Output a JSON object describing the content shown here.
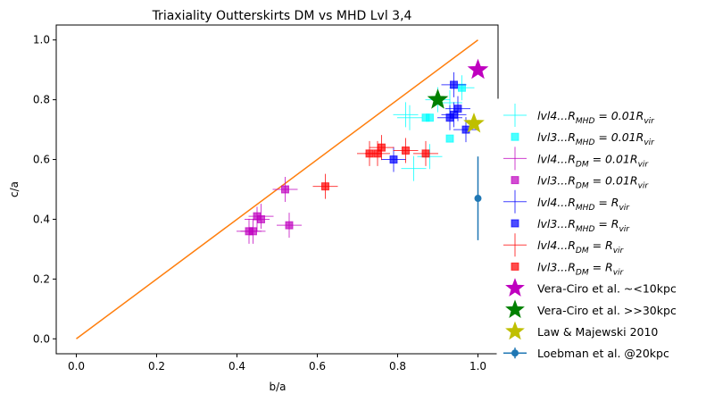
{
  "chart_data": {
    "type": "scatter",
    "title": "Triaxiality Outterskirts DM vs MHD Lvl 3,4",
    "xlabel": "b/a",
    "ylabel": "c/a",
    "xlim": [
      -0.05,
      1.05
    ],
    "ylim": [
      -0.05,
      1.05
    ],
    "xticks": [
      "0.0",
      "0.2",
      "0.4",
      "0.6",
      "0.8",
      "1.0"
    ],
    "yticks": [
      "0.0",
      "0.2",
      "0.4",
      "0.6",
      "0.8",
      "1.0"
    ],
    "grid": false,
    "legend_position": "right",
    "reference_line": {
      "x": [
        0,
        1
      ],
      "y": [
        0,
        1
      ],
      "color": "#ff7f0e"
    },
    "series": [
      {
        "label": "lvl4...R_MHD = 0.01R_vir",
        "legend_main": "lvl4...R",
        "legend_sub": "MHD",
        "legend_mid": " = 0.01R",
        "legend_sub2": "vir",
        "marker": "cross",
        "color": "#00ffff",
        "points": [
          [
            0.82,
            0.75
          ],
          [
            0.84,
            0.57
          ],
          [
            0.88,
            0.61
          ],
          [
            0.9,
            0.8
          ],
          [
            0.93,
            0.79
          ],
          [
            0.96,
            0.84
          ],
          [
            0.83,
            0.74
          ]
        ]
      },
      {
        "label": "lvl3...R_MHD = 0.01R_vir",
        "legend_main": "lvl3...R",
        "legend_sub": "MHD",
        "legend_mid": " = 0.01R",
        "legend_sub2": "vir",
        "marker": "square",
        "color": "#00ffff",
        "points": [
          [
            0.87,
            0.74
          ],
          [
            0.88,
            0.74
          ],
          [
            0.93,
            0.67
          ],
          [
            0.96,
            0.84
          ]
        ]
      },
      {
        "label": "lvl4...R_DM = 0.01R_vir",
        "legend_main": "lvl4...R",
        "legend_sub": "DM",
        "legend_mid": " = 0.01R",
        "legend_sub2": "vir",
        "marker": "cross",
        "color": "#bf00bf",
        "points": [
          [
            0.43,
            0.36
          ],
          [
            0.44,
            0.36
          ],
          [
            0.45,
            0.4
          ],
          [
            0.46,
            0.41
          ],
          [
            0.52,
            0.5
          ],
          [
            0.53,
            0.38
          ]
        ]
      },
      {
        "label": "lvl3...R_DM = 0.01R_vir",
        "legend_main": "lvl3...R",
        "legend_sub": "DM",
        "legend_mid": " = 0.01R",
        "legend_sub2": "vir",
        "marker": "square",
        "color": "#bf00bf",
        "points": [
          [
            0.43,
            0.36
          ],
          [
            0.44,
            0.36
          ],
          [
            0.45,
            0.41
          ],
          [
            0.46,
            0.4
          ],
          [
            0.52,
            0.5
          ],
          [
            0.53,
            0.38
          ]
        ]
      },
      {
        "label": "lvl4...R_MHD = R_vir",
        "legend_main": "lvl4...R",
        "legend_sub": "MHD",
        "legend_mid": " = R",
        "legend_sub2": "vir",
        "marker": "cross",
        "color": "#0000ff",
        "points": [
          [
            0.79,
            0.6
          ],
          [
            0.93,
            0.74
          ],
          [
            0.94,
            0.85
          ],
          [
            0.95,
            0.77
          ],
          [
            0.97,
            0.7
          ],
          [
            0.94,
            0.75
          ]
        ]
      },
      {
        "label": "lvl3...R_MHD = R_vir",
        "legend_main": "lvl3...R",
        "legend_sub": "MHD",
        "legend_mid": " = R",
        "legend_sub2": "vir",
        "marker": "square",
        "color": "#0000ff",
        "points": [
          [
            0.79,
            0.6
          ],
          [
            0.93,
            0.74
          ],
          [
            0.94,
            0.85
          ],
          [
            0.95,
            0.77
          ],
          [
            0.97,
            0.7
          ],
          [
            0.94,
            0.75
          ]
        ]
      },
      {
        "label": "lvl4...R_DM = R_vir",
        "legend_main": "lvl4...R",
        "legend_sub": "DM",
        "legend_mid": " = R",
        "legend_sub2": "vir",
        "marker": "cross",
        "color": "#ff0000",
        "points": [
          [
            0.62,
            0.51
          ],
          [
            0.73,
            0.62
          ],
          [
            0.75,
            0.62
          ],
          [
            0.76,
            0.64
          ],
          [
            0.82,
            0.63
          ],
          [
            0.87,
            0.62
          ]
        ]
      },
      {
        "label": "lvl3...R_DM = R_vir",
        "legend_main": "lvl3...R",
        "legend_sub": "DM",
        "legend_mid": " = R",
        "legend_sub2": "vir",
        "marker": "square",
        "color": "#ff0000",
        "points": [
          [
            0.62,
            0.51
          ],
          [
            0.73,
            0.62
          ],
          [
            0.75,
            0.62
          ],
          [
            0.76,
            0.64
          ],
          [
            0.82,
            0.63
          ],
          [
            0.87,
            0.62
          ]
        ]
      },
      {
        "label": "Vera-Ciro et al. ~<10kpc",
        "marker": "star",
        "color": "#bf00bf",
        "points": [
          [
            1.0,
            0.9
          ]
        ]
      },
      {
        "label": "Vera-Ciro et al. >>30kpc",
        "marker": "star",
        "color": "#008000",
        "points": [
          [
            0.9,
            0.8
          ]
        ]
      },
      {
        "label": "Law & Majewski 2010",
        "marker": "star",
        "color": "#bfbf00",
        "points": [
          [
            0.99,
            0.72
          ]
        ]
      },
      {
        "label": "Loebman et al. @20kpc",
        "marker": "errorbar",
        "color": "#1f77b4",
        "points": [
          [
            1.0,
            0.47
          ]
        ],
        "yerr": [
          0.14
        ]
      }
    ]
  }
}
